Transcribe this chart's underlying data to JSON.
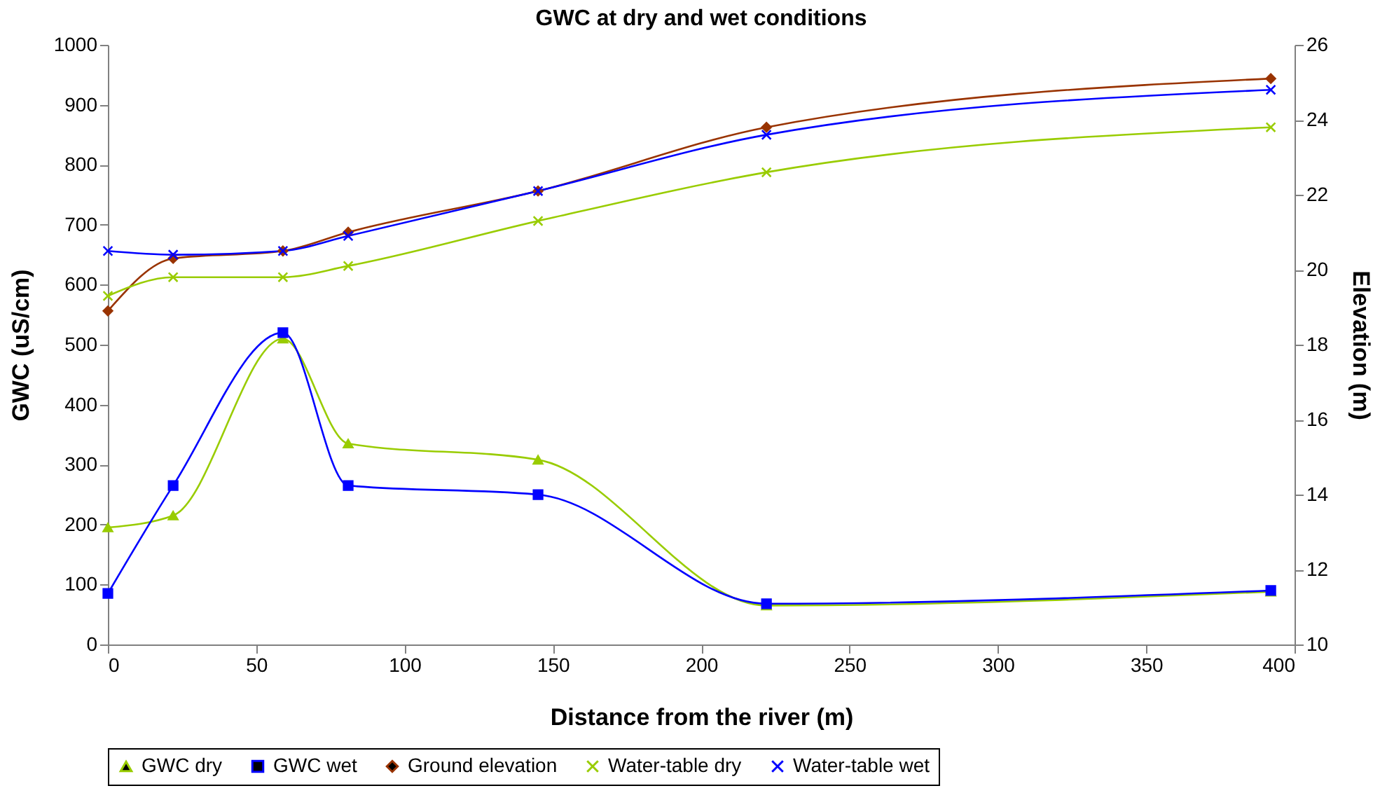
{
  "chart_data": {
    "type": "line",
    "title": "GWC at dry and wet conditions",
    "xlabel": "Distance from the river (m)",
    "ylabel": "GWC (uS/cm)",
    "y2label": "Elevation (m)",
    "x": [
      0,
      22,
      59,
      81,
      145,
      222,
      392
    ],
    "xlim": [
      0,
      400
    ],
    "xticks": [
      0,
      50,
      100,
      150,
      200,
      250,
      300,
      350,
      400
    ],
    "ylim": [
      0,
      1000
    ],
    "yticks": [
      0,
      100,
      200,
      300,
      400,
      500,
      600,
      700,
      800,
      900,
      1000
    ],
    "y2lim": [
      10,
      26
    ],
    "y2ticks": [
      10,
      12,
      14,
      16,
      18,
      20,
      22,
      24,
      26
    ],
    "grid": false,
    "legend": "bottom",
    "series": [
      {
        "name": "GWC dry",
        "color": "#99cc00",
        "marker": "triangle",
        "values": [
          195,
          215,
          510,
          335,
          308,
          65,
          88
        ]
      },
      {
        "name": "GWC wet",
        "color": "#0000ff",
        "marker": "square",
        "values": [
          85,
          265,
          520,
          265,
          250,
          68,
          90
        ]
      },
      {
        "name": "Ground elevation",
        "color": "#993300",
        "marker": "diamond",
        "axis": "y2",
        "values": [
          18.9,
          20.3,
          20.5,
          21.0,
          22.1,
          23.8,
          25.1
        ]
      },
      {
        "name": "Water-table dry",
        "color": "#99cc00",
        "marker": "cross",
        "axis": "y2",
        "values": [
          19.3,
          19.8,
          19.8,
          20.1,
          21.3,
          22.6,
          23.8
        ]
      },
      {
        "name": "Water-table wet",
        "color": "#0000ff",
        "marker": "cross",
        "axis": "y2",
        "values": [
          20.5,
          20.4,
          20.5,
          20.9,
          22.1,
          23.6,
          24.8
        ]
      }
    ]
  }
}
